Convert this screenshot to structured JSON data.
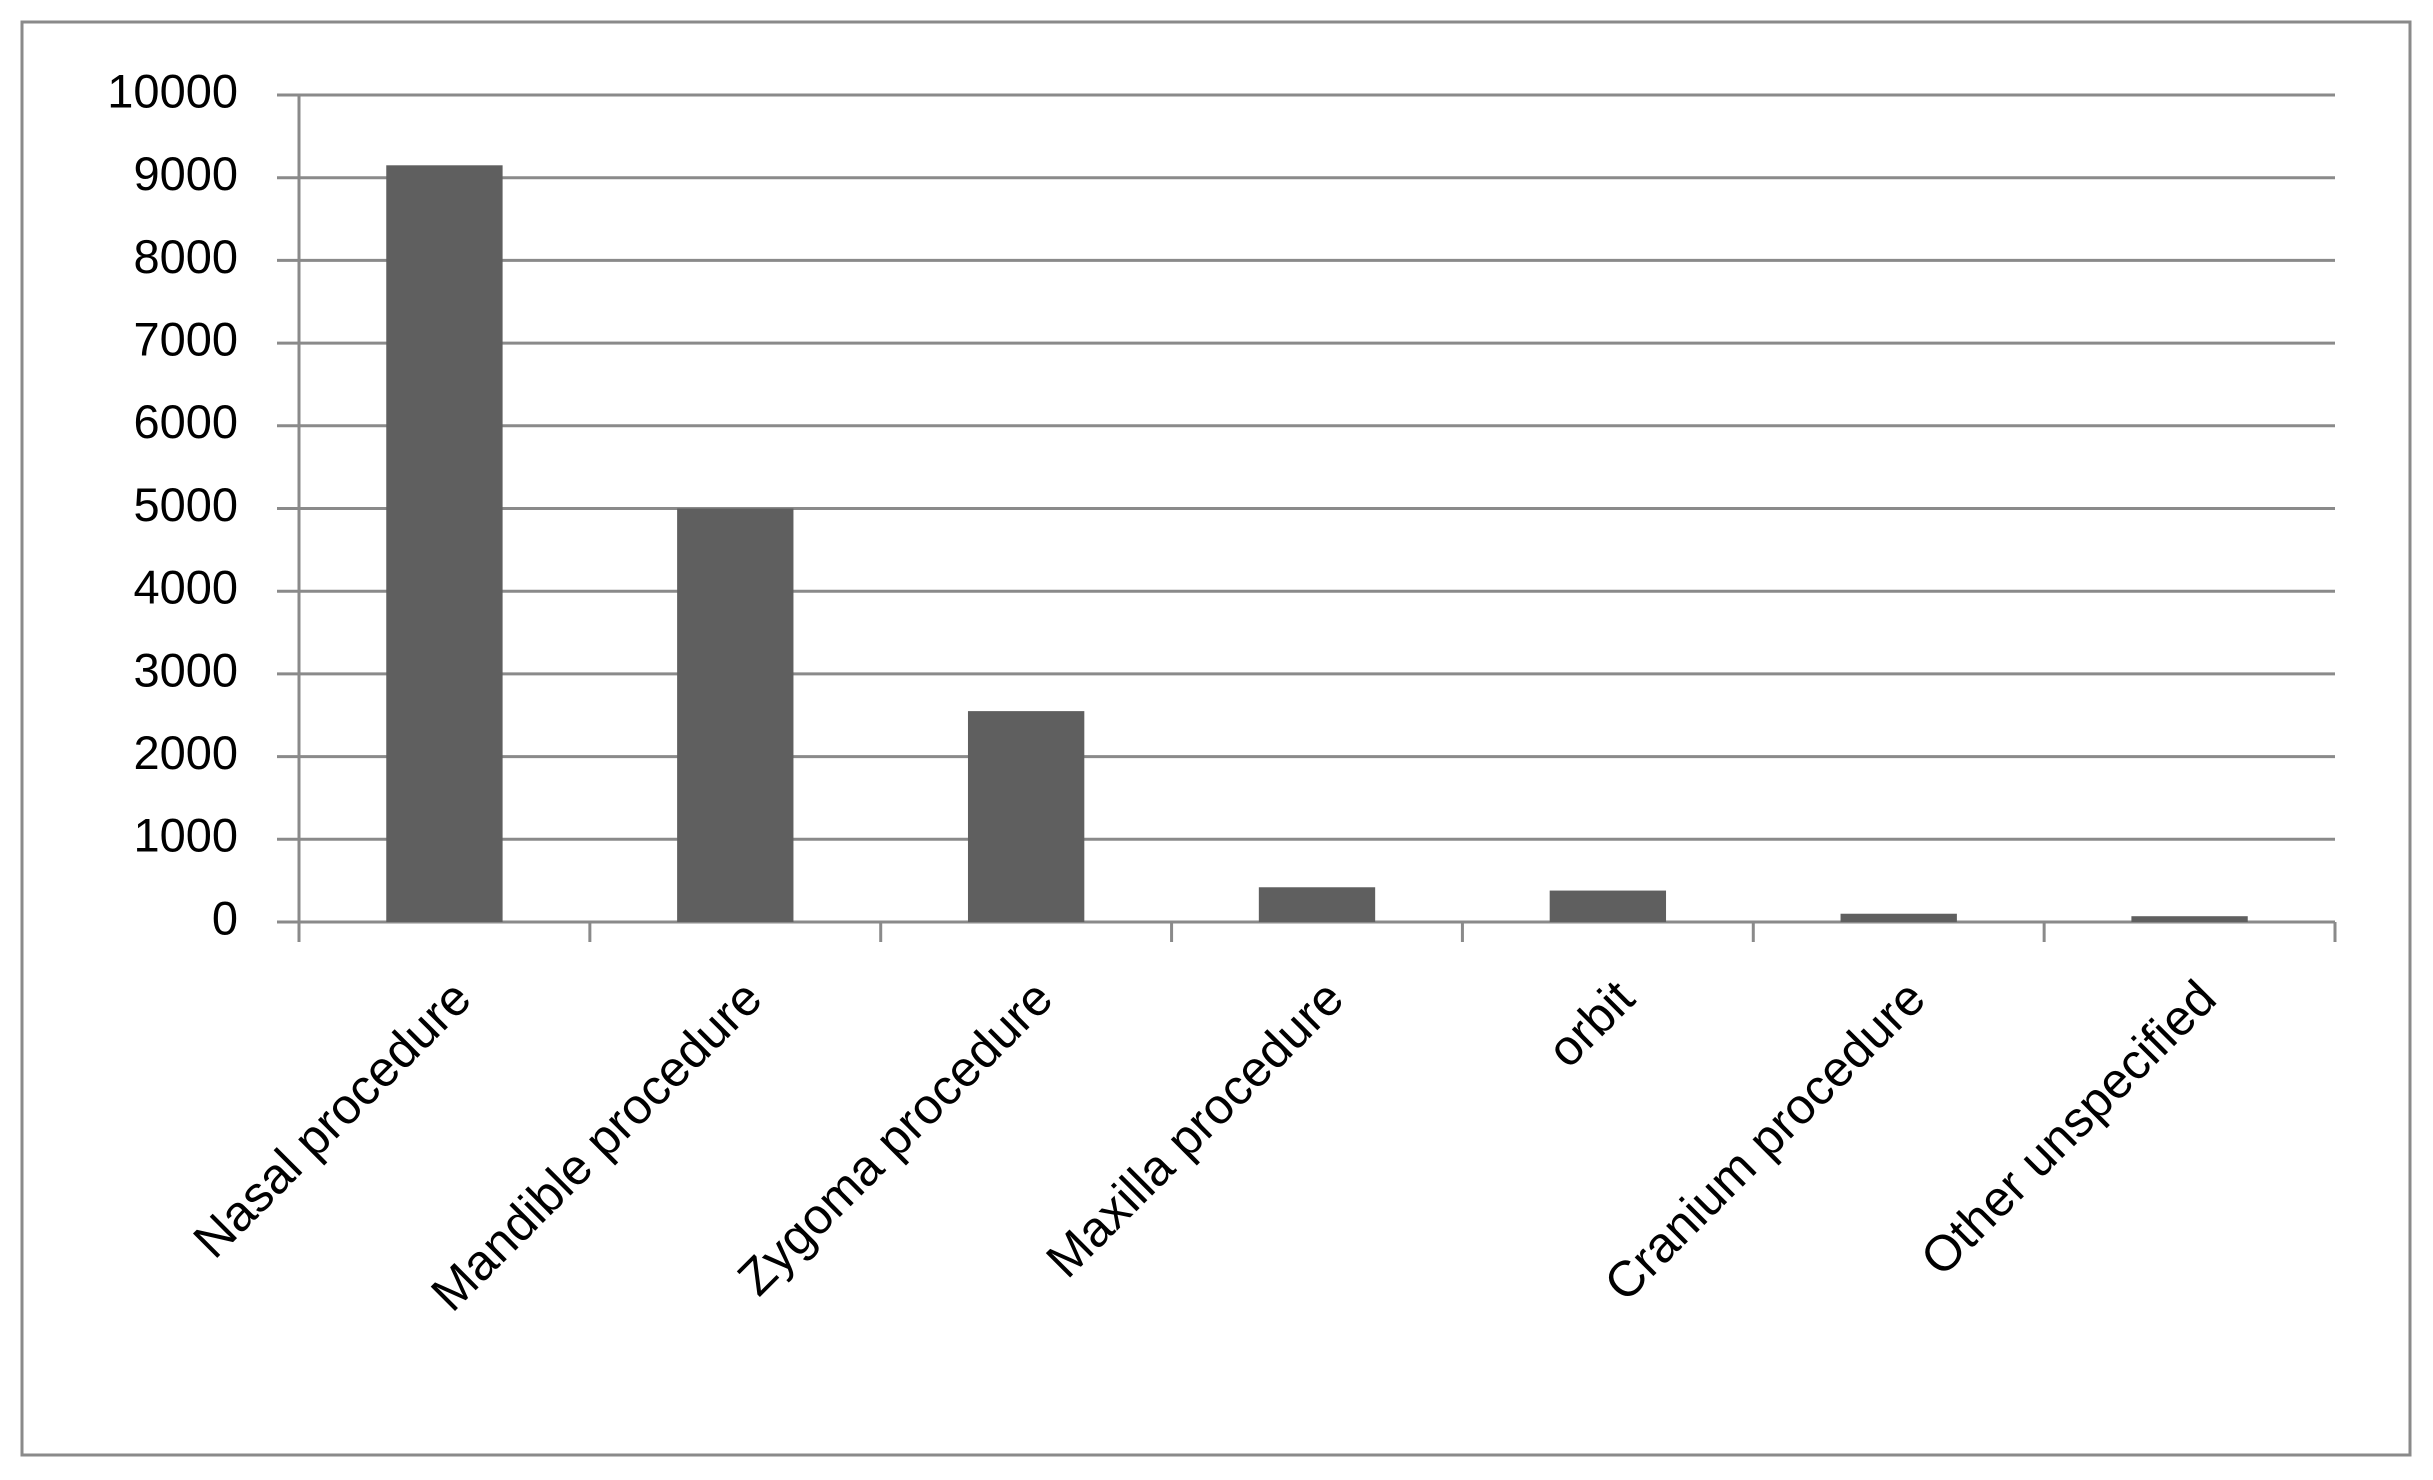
{
  "chart_data": {
    "type": "bar",
    "categories": [
      "Nasal procedure",
      "Mandible procedure",
      "Zygoma procedure",
      "Maxilla procedure",
      "orbit",
      "Cranium procedure",
      "Other unspecified"
    ],
    "values": [
      9150,
      5000,
      2550,
      420,
      380,
      100,
      70
    ],
    "color": "#5f5f5f",
    "ylim": [
      0,
      10000
    ],
    "yticks": [
      0,
      1000,
      2000,
      3000,
      4000,
      5000,
      6000,
      7000,
      8000,
      9000,
      10000
    ],
    "grid": true
  }
}
